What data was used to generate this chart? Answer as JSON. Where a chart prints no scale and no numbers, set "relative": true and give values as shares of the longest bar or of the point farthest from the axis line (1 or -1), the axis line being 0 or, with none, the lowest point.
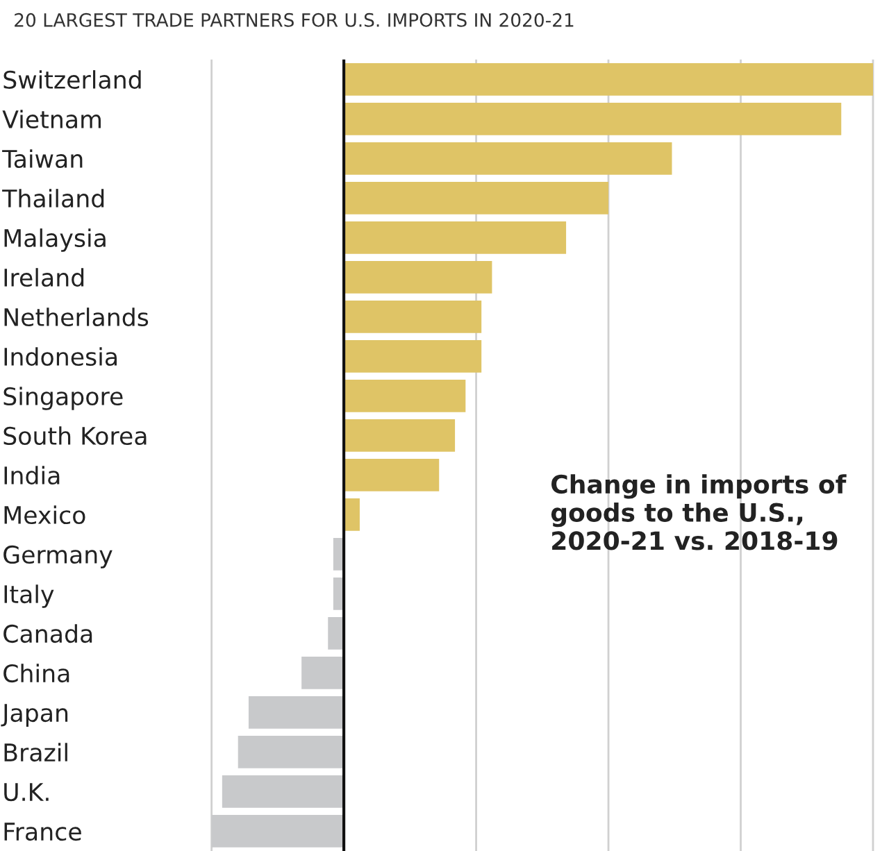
{
  "chart_data": {
    "type": "bar",
    "orientation": "horizontal",
    "relative": true,
    "grid": "x",
    "subtitle": "20 LARGEST TRADE PARTNERS FOR U.S. IMPORTS IN 2020-21",
    "annotations": [
      "Change in imports of goods to the U.S., 2020-21 vs. 2018-19"
    ],
    "categories": [
      "Switzerland",
      "Vietnam",
      "Taiwan",
      "Thailand",
      "Malaysia",
      "Ireland",
      "Netherlands",
      "Indonesia",
      "Singapore",
      "South Korea",
      "India",
      "Mexico",
      "Germany",
      "Italy",
      "Canada",
      "China",
      "Japan",
      "Brazil",
      "U.K.",
      "France"
    ],
    "values": [
      1.0,
      0.94,
      0.62,
      0.5,
      0.42,
      0.28,
      0.26,
      0.26,
      0.23,
      0.21,
      0.18,
      0.03,
      -0.02,
      -0.02,
      -0.03,
      -0.08,
      -0.18,
      -0.2,
      -0.23,
      -0.25
    ],
    "colors": [
      "#dfc466",
      "#dfc466",
      "#dfc466",
      "#dfc466",
      "#dfc466",
      "#dfc466",
      "#dfc466",
      "#dfc466",
      "#dfc466",
      "#dfc466",
      "#dfc466",
      "#dfc466",
      "#c8c9cb",
      "#c8c9cb",
      "#c8c9cb",
      "#c8c9cb",
      "#c8c9cb",
      "#c8c9cb",
      "#c8c9cb",
      "#c8c9cb"
    ]
  }
}
